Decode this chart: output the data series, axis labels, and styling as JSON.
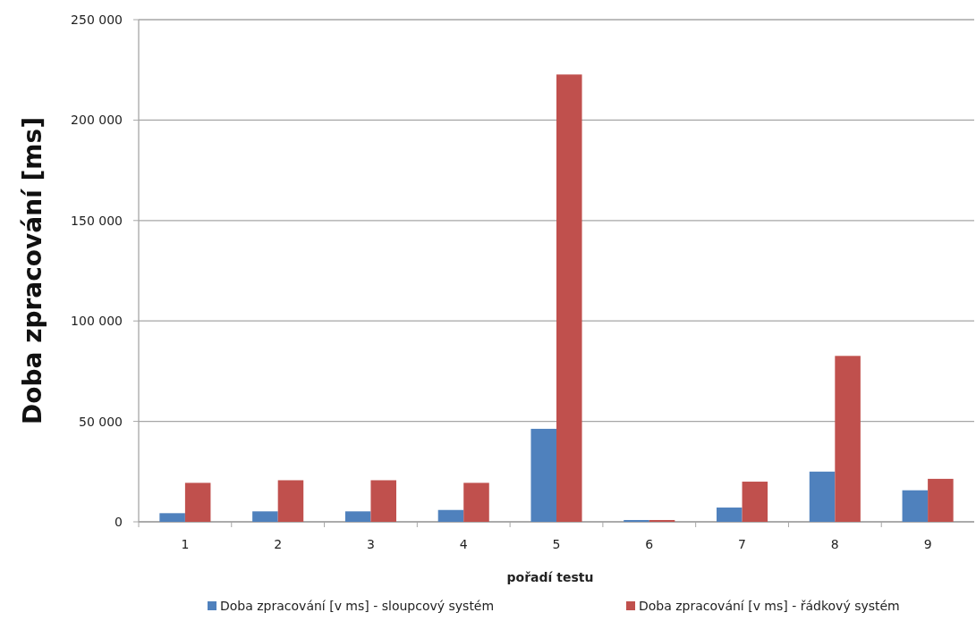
{
  "chart_data": {
    "type": "bar",
    "xlabel": "pořadí testu",
    "ylabel": "Doba zpracování [ms]",
    "categories": [
      "1",
      "2",
      "3",
      "4",
      "5",
      "6",
      "7",
      "8",
      "9"
    ],
    "series": [
      {
        "name": "Doba zpracování [v ms] - sloupcový systém",
        "color": "#4f81bd",
        "values": [
          4300,
          5200,
          5200,
          5900,
          46300,
          900,
          7100,
          25000,
          15700
        ]
      },
      {
        "name": "Doba zpracování [v ms] - řádkový systém",
        "color": "#c0504d",
        "values": [
          19400,
          20700,
          20700,
          19400,
          222700,
          900,
          20000,
          82600,
          21400
        ]
      }
    ],
    "ylim": [
      0,
      250000
    ],
    "yticks": [
      {
        "value": 0,
        "label": "0"
      },
      {
        "value": 50000,
        "label": "50 000"
      },
      {
        "value": 100000,
        "label": "100 000"
      },
      {
        "value": 150000,
        "label": "150 000"
      },
      {
        "value": 200000,
        "label": "200 000"
      },
      {
        "value": 250000,
        "label": "250 000"
      }
    ],
    "grid": "y",
    "legend": "bottom"
  }
}
